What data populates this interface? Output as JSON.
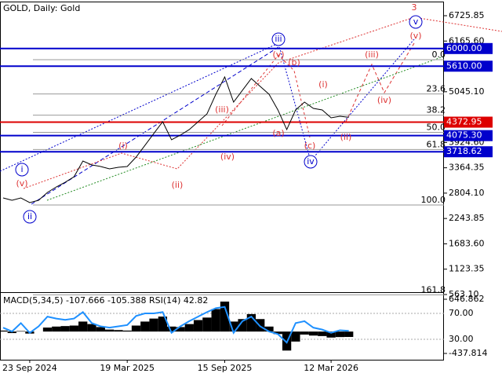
{
  "chart_data": [
    {
      "type": "line",
      "title": "GOLD, Daily:  Gold",
      "categories": [
        null,
        null,
        null,
        "23 Sep 2024",
        null,
        null,
        null,
        null,
        null,
        null,
        null,
        null,
        null,
        null,
        "19 Mar 2025",
        null,
        null,
        null,
        null,
        null,
        null,
        null,
        null,
        null,
        null,
        "15 Sep 2025",
        null,
        null,
        null,
        null,
        null,
        null,
        null,
        null,
        null,
        null,
        null,
        "12 Mar 2026",
        null,
        null
      ],
      "series": [
        {
          "color": "#000000",
          "values": [
            2698,
            2646,
            2698,
            2594,
            2646,
            2820,
            2941,
            3045,
            3167,
            3514,
            3427,
            3393,
            3341,
            3375,
            3393,
            3601,
            3861,
            4122,
            4382,
            3983,
            4087,
            4209,
            4382,
            4556,
            4990,
            5372,
            4816,
            5077,
            5337,
            5163,
            4990,
            4643,
            4209,
            4643,
            4816,
            4677,
            4643,
            4469,
            4504,
            4480
          ]
        }
      ],
      "ylim": [
        528,
        7021
      ],
      "yticks": [
        6725.85,
        {
          "value": 6165.6,
          "label": "6165.60"
        },
        {
          "value": 5045.1,
          "label": "5045.10"
        },
        {
          "value": 3924.6,
          "label": "3924.60"
        },
        3364.35,
        {
          "value": 2804.1,
          "label": "2804.10"
        },
        2243.85,
        {
          "value": 1683.6,
          "label": "1683.60"
        },
        1123.35,
        {
          "value": 563.1,
          "label": "563.10"
        }
      ],
      "hlines": [
        {
          "value": 6000,
          "label": "6000.00",
          "color": "#0000cc"
        },
        {
          "value": 5610,
          "label": "5610.00",
          "color": "#0000cc"
        },
        {
          "value": 4372.95,
          "label": "4372.95",
          "color": "#dd0000"
        },
        {
          "value": 4075.3,
          "label": "4075.30",
          "color": "#0000cc"
        },
        {
          "value": 3718.62,
          "label": "3718.62",
          "color": "#0000cc"
        }
      ],
      "fibonacci": {
        "start": 5754,
        "end": 2542,
        "levels": [
          {
            "value": 0,
            "label": "0.0"
          },
          23.6,
          38.2,
          {
            "value": 50,
            "label": "50.0"
          },
          61.8,
          {
            "value": 100,
            "label": "100.0"
          },
          161.8
        ]
      },
      "annotations": [
        {
          "text": "3",
          "color": "#dd3333",
          "circled": false
        },
        {
          "text": "v",
          "color": "#0000cc",
          "circled": true
        },
        {
          "text": "(v)",
          "color": "#dd3333",
          "circled": false
        },
        {
          "text": "iii",
          "color": "#0000cc",
          "circled": true
        },
        {
          "text": "(v)",
          "color": "#dd3333",
          "circled": false
        },
        {
          "text": "(b)",
          "color": "#dd3333",
          "circled": false
        },
        {
          "text": "(iii)",
          "color": "#dd3333",
          "circled": false
        },
        {
          "text": "(i)",
          "color": "#dd3333",
          "circled": false
        },
        {
          "text": "(ii)",
          "color": "#dd3333",
          "circled": false
        },
        {
          "text": "(iv)",
          "color": "#dd3333",
          "circled": false
        },
        {
          "text": "(a)",
          "color": "#dd3333",
          "circled": false
        },
        {
          "text": "(c)",
          "color": "#dd3333",
          "circled": false
        },
        {
          "text": "iv",
          "color": "#0000cc",
          "circled": true
        },
        {
          "text": "(i)",
          "color": "#dd3333",
          "circled": false
        },
        {
          "text": "(ii)",
          "color": "#dd3333",
          "circled": false
        },
        {
          "text": "(iii)",
          "color": "#dd3333",
          "circled": false
        },
        {
          "text": "(iv)",
          "color": "#dd3333",
          "circled": false
        },
        {
          "text": "i",
          "color": "#0000cc",
          "circled": true
        },
        {
          "text": "(v)",
          "color": "#dd3333",
          "circled": false
        },
        {
          "text": "ii",
          "color": "#0000cc",
          "circled": true
        }
      ]
    },
    {
      "type": "bar",
      "title": "MACD(5,34,5) -107.666 -105.388 RSI(14) 42.82",
      "ylim": [
        -437.814,
        646.862
      ],
      "yticks": [
        646.862,
        -437.814
      ],
      "y2lim": [
        8.2,
        91.8
      ],
      "y2ticks": [
        {
          "value": 70,
          "label": "70.00"
        },
        {
          "value": 30,
          "label": "30.00"
        }
      ],
      "series": [
        {
          "color": "#000000",
          "values": [
            20,
            -30,
            10,
            -40,
            0,
            80,
            100,
            110,
            120,
            200,
            150,
            90,
            40,
            30,
            20,
            120,
            200,
            260,
            300,
            100,
            90,
            150,
            230,
            280,
            450,
            600,
            200,
            250,
            350,
            250,
            100,
            -50,
            -380,
            -200,
            -60,
            -80,
            -90,
            -120,
            -110,
            -108
          ]
        },
        {
          "color": "#1e90ff",
          "axis": "y2",
          "values": [
            48,
            42,
            55,
            40,
            50,
            65,
            62,
            60,
            62,
            72,
            55,
            50,
            48,
            50,
            52,
            66,
            70,
            70,
            72,
            40,
            50,
            58,
            65,
            72,
            78,
            80,
            40,
            58,
            65,
            50,
            42,
            38,
            25,
            55,
            58,
            48,
            45,
            40,
            44,
            43
          ]
        }
      ]
    }
  ]
}
